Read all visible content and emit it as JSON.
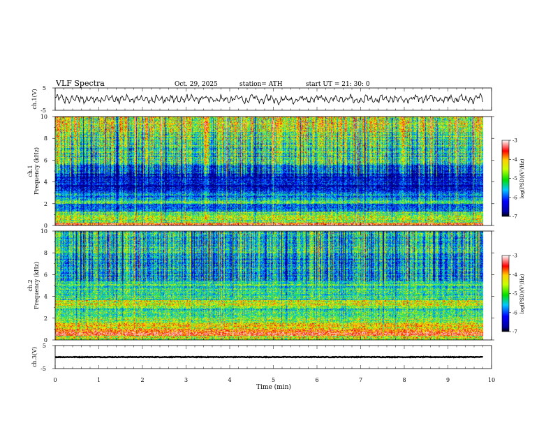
{
  "header": {
    "title": "VLF  Spectra",
    "date": "Oct. 29, 2025",
    "station": "station= ATH",
    "start": "start  UT  =   21: 30: 0"
  },
  "chart_data": {
    "type": "heatmap",
    "title": "VLF  Spectra",
    "xlabel": "Time  (min)",
    "xlim": [
      0,
      10
    ],
    "xticks": [
      "0",
      "1",
      "2",
      "3",
      "4",
      "5",
      "6",
      "7",
      "8",
      "9",
      "10"
    ],
    "data_end_min": 9.8,
    "panels": [
      {
        "id": "ch1-waveform",
        "type": "line",
        "ylabel": "ch.1(V)",
        "ylim": [
          -5,
          5
        ],
        "yticks": [
          "5",
          "-5"
        ],
        "amplitude": 2.6
      },
      {
        "id": "ch1-spectrogram",
        "type": "heatmap",
        "ylabel_line1": "ch.1",
        "ylabel_line2": "Frequency  (kHz)",
        "ylim": [
          0,
          10
        ],
        "yticks": [
          "0",
          "2",
          "4",
          "6",
          "8",
          "10"
        ],
        "colorbar": {
          "label": "log(PSD)(V²/Hz)",
          "ticks": [
            "-3",
            "-4",
            "-5",
            "-6",
            "-7"
          ],
          "range": [
            -7,
            -3
          ]
        },
        "bands": [
          {
            "from": 0.0,
            "to": 0.3,
            "level": 3.0
          },
          {
            "from": 0.3,
            "to": 0.9,
            "level": 2.0
          },
          {
            "from": 0.9,
            "to": 1.3,
            "level": 1.7
          },
          {
            "from": 1.3,
            "to": 2.0,
            "level": 0.9
          },
          {
            "from": 2.0,
            "to": 2.4,
            "level": 1.8
          },
          {
            "from": 2.4,
            "to": 3.2,
            "level": 1.0
          },
          {
            "from": 3.2,
            "to": 4.8,
            "level": 0.35
          },
          {
            "from": 4.8,
            "to": 5.6,
            "level": 0.9
          },
          {
            "from": 5.6,
            "to": 7.2,
            "level": 1.6
          },
          {
            "from": 7.2,
            "to": 8.6,
            "level": 1.9
          },
          {
            "from": 8.6,
            "to": 10.0,
            "level": 2.3
          }
        ]
      },
      {
        "id": "ch2-spectrogram",
        "type": "heatmap",
        "ylabel_line1": "ch.2",
        "ylabel_line2": "Frequency  (kHz)",
        "ylim": [
          0,
          10
        ],
        "yticks": [
          "0",
          "2",
          "4",
          "6",
          "8",
          "10"
        ],
        "colorbar": {
          "label": "log(PSD)(V²/Hz)",
          "ticks": [
            "-3",
            "-4",
            "-5",
            "-6",
            "-7"
          ],
          "range": [
            -7,
            -3
          ]
        },
        "bands": [
          {
            "from": 0.0,
            "to": 0.4,
            "level": 2.2
          },
          {
            "from": 0.4,
            "to": 1.0,
            "level": 3.2
          },
          {
            "from": 1.0,
            "to": 1.6,
            "level": 2.3
          },
          {
            "from": 1.6,
            "to": 2.2,
            "level": 2.0
          },
          {
            "from": 2.2,
            "to": 3.2,
            "level": 1.7
          },
          {
            "from": 3.2,
            "to": 3.7,
            "level": 2.4
          },
          {
            "from": 3.7,
            "to": 5.4,
            "level": 1.6
          },
          {
            "from": 5.4,
            "to": 7.5,
            "level": 1.2
          },
          {
            "from": 7.5,
            "to": 10.0,
            "level": 1.4
          }
        ]
      },
      {
        "id": "ch3-waveform",
        "type": "line",
        "ylabel": "ch.3(V)",
        "ylim": [
          -5,
          5
        ],
        "yticks": [
          "5",
          "-5"
        ],
        "offset": 0,
        "amplitude": 0.15
      }
    ]
  }
}
